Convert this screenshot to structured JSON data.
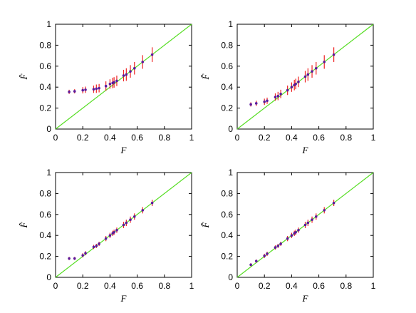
{
  "figure": {
    "colors": {
      "identity_line": "#55dd22",
      "error_bar": "#ee2222",
      "marker": "#5a1a9c",
      "axes": "#000000"
    }
  },
  "chart_data": [
    {
      "type": "scatter",
      "title": "",
      "xlabel": "F",
      "ylabel": "F̂",
      "xlim": [
        0,
        1
      ],
      "ylim": [
        0,
        1
      ],
      "xticks": [
        "0",
        "0.2",
        "0.4",
        "0.6",
        "0.8",
        "1"
      ],
      "yticks": [
        "0",
        "0.2",
        "0.4",
        "0.6",
        "0.8",
        "1"
      ],
      "grid": false,
      "reference_line": {
        "from": [
          0,
          0
        ],
        "to": [
          1,
          1
        ]
      },
      "series": [
        {
          "x": [
            0.1,
            0.14,
            0.2,
            0.22,
            0.28,
            0.3,
            0.32,
            0.37,
            0.4,
            0.42,
            0.43,
            0.45,
            0.5,
            0.52,
            0.55,
            0.58,
            0.64,
            0.71
          ],
          "y": [
            0.355,
            0.36,
            0.37,
            0.375,
            0.38,
            0.385,
            0.39,
            0.41,
            0.43,
            0.44,
            0.445,
            0.46,
            0.51,
            0.52,
            0.55,
            0.58,
            0.64,
            0.71
          ],
          "err": [
            0.02,
            0.02,
            0.03,
            0.03,
            0.035,
            0.04,
            0.04,
            0.045,
            0.045,
            0.05,
            0.05,
            0.05,
            0.055,
            0.06,
            0.06,
            0.06,
            0.065,
            0.07
          ]
        }
      ]
    },
    {
      "type": "scatter",
      "title": "",
      "xlabel": "F",
      "ylabel": "F̂",
      "xlim": [
        0,
        1
      ],
      "ylim": [
        0,
        1
      ],
      "xticks": [
        "0",
        "0.2",
        "0.4",
        "0.6",
        "0.8",
        "1"
      ],
      "yticks": [
        "0",
        "0.2",
        "0.4",
        "0.6",
        "0.8",
        "1"
      ],
      "grid": false,
      "reference_line": {
        "from": [
          0,
          0
        ],
        "to": [
          1,
          1
        ]
      },
      "series": [
        {
          "x": [
            0.1,
            0.14,
            0.2,
            0.22,
            0.28,
            0.3,
            0.32,
            0.37,
            0.4,
            0.42,
            0.43,
            0.45,
            0.5,
            0.52,
            0.55,
            0.58,
            0.64,
            0.71
          ],
          "y": [
            0.235,
            0.245,
            0.26,
            0.27,
            0.305,
            0.315,
            0.335,
            0.37,
            0.4,
            0.42,
            0.43,
            0.45,
            0.5,
            0.52,
            0.55,
            0.58,
            0.64,
            0.71
          ],
          "err": [
            0.02,
            0.025,
            0.03,
            0.03,
            0.035,
            0.04,
            0.04,
            0.045,
            0.045,
            0.05,
            0.05,
            0.05,
            0.055,
            0.06,
            0.06,
            0.06,
            0.065,
            0.07
          ]
        }
      ]
    },
    {
      "type": "scatter",
      "title": "",
      "xlabel": "F",
      "ylabel": "F̂",
      "xlim": [
        0,
        1
      ],
      "ylim": [
        0,
        1
      ],
      "xticks": [
        "0",
        "0.2",
        "0.4",
        "0.6",
        "0.8",
        "1"
      ],
      "yticks": [
        "0",
        "0.2",
        "0.4",
        "0.6",
        "0.8",
        "1"
      ],
      "grid": false,
      "reference_line": {
        "from": [
          0,
          0
        ],
        "to": [
          1,
          1
        ]
      },
      "series": [
        {
          "x": [
            0.1,
            0.14,
            0.2,
            0.22,
            0.28,
            0.3,
            0.32,
            0.37,
            0.4,
            0.42,
            0.43,
            0.45,
            0.5,
            0.52,
            0.55,
            0.58,
            0.64,
            0.71
          ],
          "y": [
            0.18,
            0.18,
            0.21,
            0.23,
            0.29,
            0.3,
            0.32,
            0.37,
            0.4,
            0.42,
            0.43,
            0.45,
            0.5,
            0.52,
            0.55,
            0.58,
            0.64,
            0.71
          ],
          "err": [
            0.015,
            0.015,
            0.02,
            0.02,
            0.02,
            0.02,
            0.02,
            0.025,
            0.025,
            0.025,
            0.025,
            0.025,
            0.03,
            0.03,
            0.03,
            0.03,
            0.03,
            0.03
          ]
        }
      ]
    },
    {
      "type": "scatter",
      "title": "",
      "xlabel": "F",
      "ylabel": "F̂",
      "xlim": [
        0,
        1
      ],
      "ylim": [
        0,
        1
      ],
      "xticks": [
        "0",
        "0.2",
        "0.4",
        "0.6",
        "0.8",
        "1"
      ],
      "yticks": [
        "0",
        "0.2",
        "0.4",
        "0.6",
        "0.8",
        "1"
      ],
      "grid": false,
      "reference_line": {
        "from": [
          0,
          0
        ],
        "to": [
          1,
          1
        ]
      },
      "series": [
        {
          "x": [
            0.1,
            0.14,
            0.2,
            0.22,
            0.28,
            0.3,
            0.32,
            0.37,
            0.4,
            0.42,
            0.43,
            0.45,
            0.5,
            0.52,
            0.55,
            0.58,
            0.64,
            0.71
          ],
          "y": [
            0.12,
            0.155,
            0.205,
            0.225,
            0.285,
            0.3,
            0.32,
            0.37,
            0.4,
            0.42,
            0.43,
            0.45,
            0.5,
            0.52,
            0.55,
            0.58,
            0.64,
            0.71
          ],
          "err": [
            0.015,
            0.015,
            0.02,
            0.02,
            0.02,
            0.02,
            0.02,
            0.025,
            0.025,
            0.025,
            0.025,
            0.025,
            0.03,
            0.03,
            0.03,
            0.03,
            0.03,
            0.03
          ]
        }
      ]
    }
  ]
}
